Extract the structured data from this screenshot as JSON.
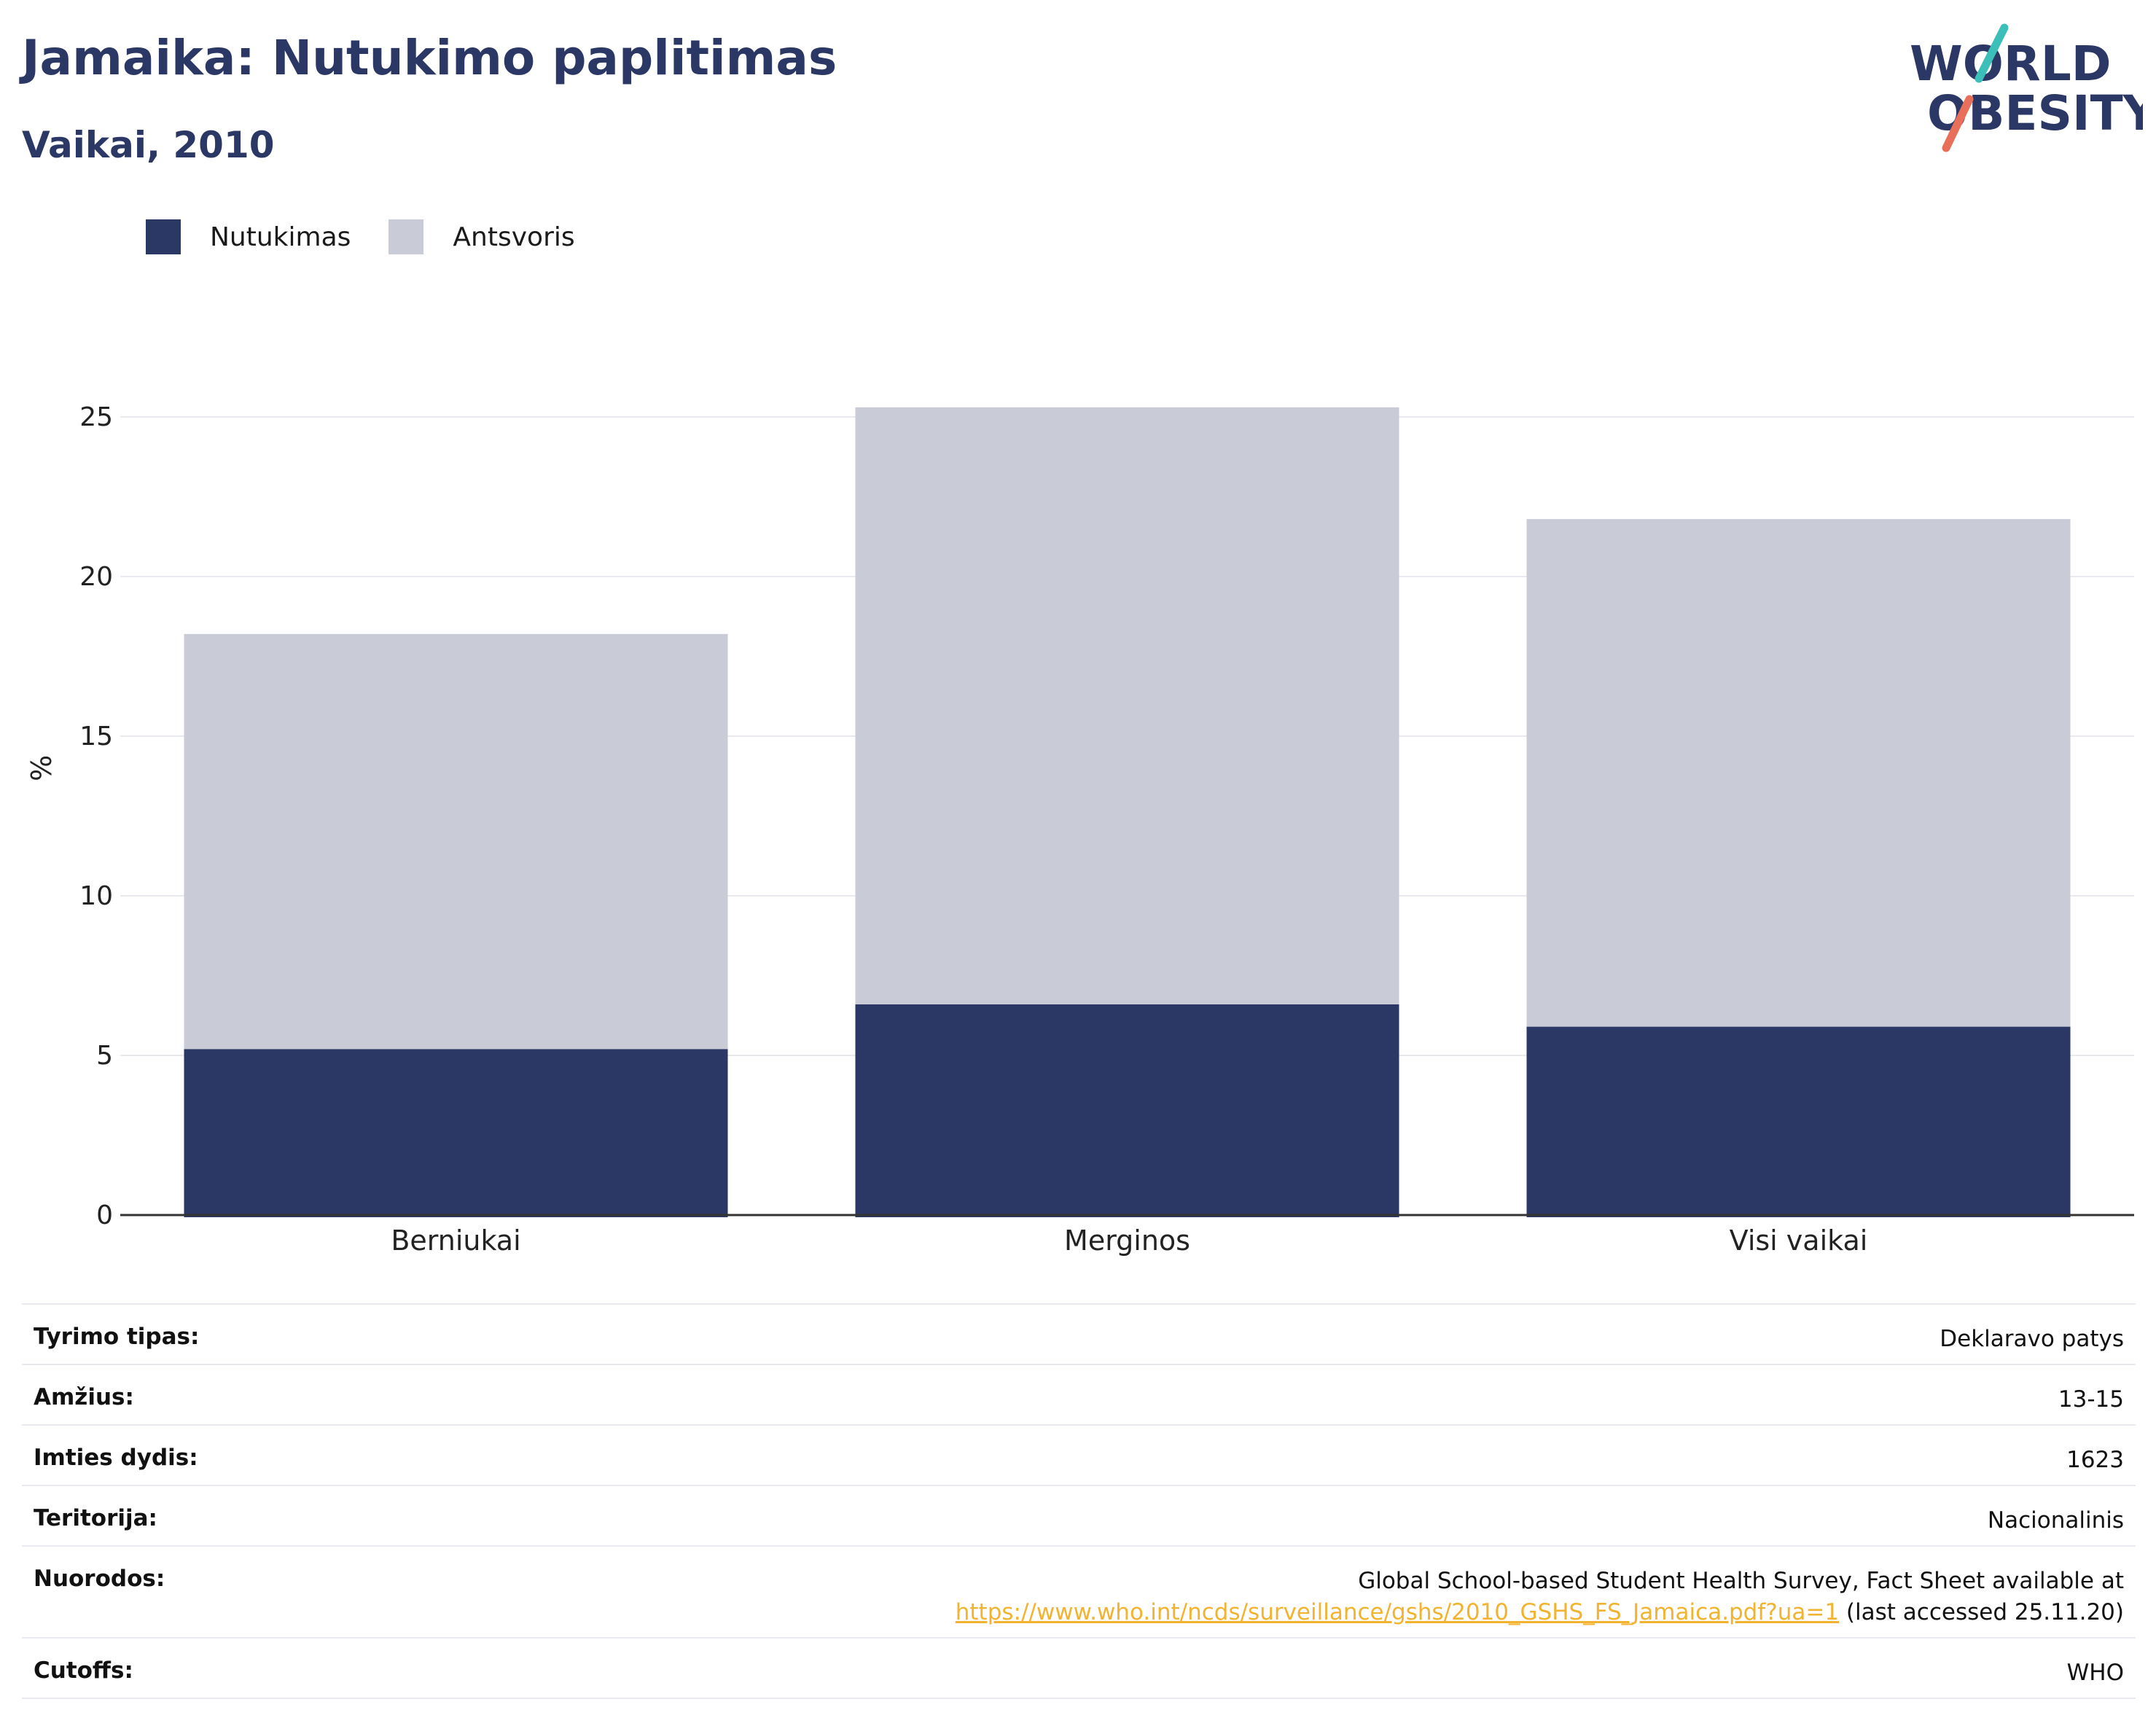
{
  "header": {
    "title": "Jamaika: Nutukimo paplitimas",
    "subtitle": "Vaikai, 2010"
  },
  "logo": {
    "line1": "WORLD",
    "line2": "OBESITY"
  },
  "legend": [
    {
      "label": "Nutukimas",
      "color": "#2b3764"
    },
    {
      "label": "Antsvoris",
      "color": "#c9cbd7"
    }
  ],
  "chart_data": {
    "type": "bar",
    "stacked": true,
    "categories": [
      "Berniukai",
      "Merginos",
      "Visi vaikai"
    ],
    "series": [
      {
        "name": "Nutukimas",
        "values": [
          5.2,
          6.6,
          5.9
        ],
        "color": "#2b3764"
      },
      {
        "name": "Antsvoris",
        "values": [
          13.0,
          18.7,
          15.9
        ],
        "color": "#c9cbd7"
      }
    ],
    "ylabel": "%",
    "ylim": [
      0,
      28
    ],
    "yticks": [
      0,
      5,
      10,
      15,
      20,
      25
    ],
    "grid": true,
    "legend_position": "top-left"
  },
  "info": {
    "survey_type": {
      "label": "Tyrimo tipas:",
      "value": "Deklaravo patys"
    },
    "age": {
      "label": "Amžius:",
      "value": "13-15"
    },
    "sample_size": {
      "label": "Imties dydis:",
      "value": "1623"
    },
    "territory": {
      "label": "Teritorija:",
      "value": "Nacionalinis"
    },
    "references": {
      "label": "Nuorodos:",
      "text": "Global School-based Student Health Survey, Fact Sheet available at",
      "link": "https://www.who.int/ncds/surveillance/gshs/2010_GSHS_FS_Jamaica.pdf?ua=1",
      "suffix": " (last accessed 25.11.20)"
    },
    "cutoffs": {
      "label": "Cutoffs:",
      "value": "WHO"
    }
  }
}
